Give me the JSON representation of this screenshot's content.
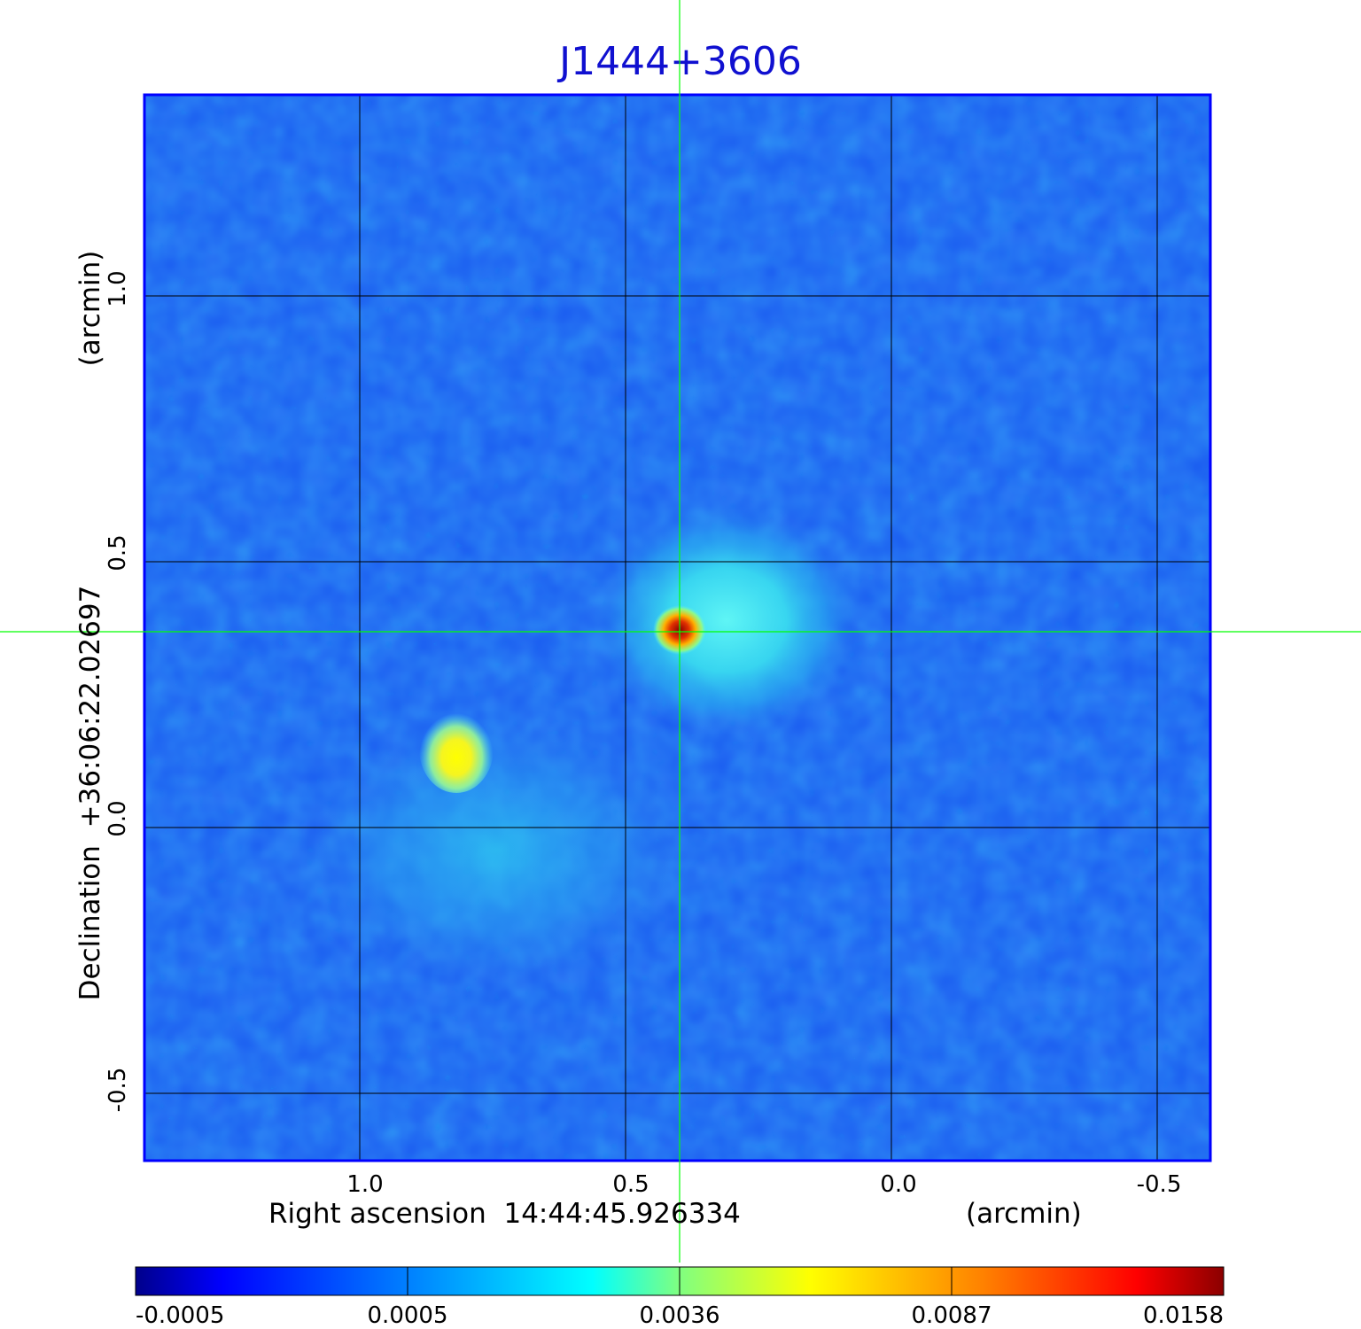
{
  "title": "J1444+3606",
  "xaxis": {
    "label": "Right ascension  14:44:45.926334",
    "unit": "(arcmin)",
    "ticks": [
      "1.0",
      "0.5",
      "0.0",
      "-0.5"
    ]
  },
  "yaxis": {
    "label": "Declination  +36:06:22.02697",
    "unit": "(arcmin)",
    "ticks": [
      "1.0",
      "0.5",
      "0.0",
      "-0.5"
    ]
  },
  "colorbar": {
    "labels": [
      "-0.0005",
      "0.0005",
      "0.0036",
      "0.0087",
      "0.0158"
    ],
    "colors": [
      "#00008b",
      "#0000ff",
      "#0080ff",
      "#00ffff",
      "#80ff80",
      "#ffff00",
      "#ff8000",
      "#ff0000",
      "#8b0000"
    ]
  },
  "colors": {
    "title": "#1010d0",
    "frame": "#0000ff",
    "grid": "#000000",
    "crosshair": "#00ff00",
    "background_map": "#1a5cf0"
  }
}
